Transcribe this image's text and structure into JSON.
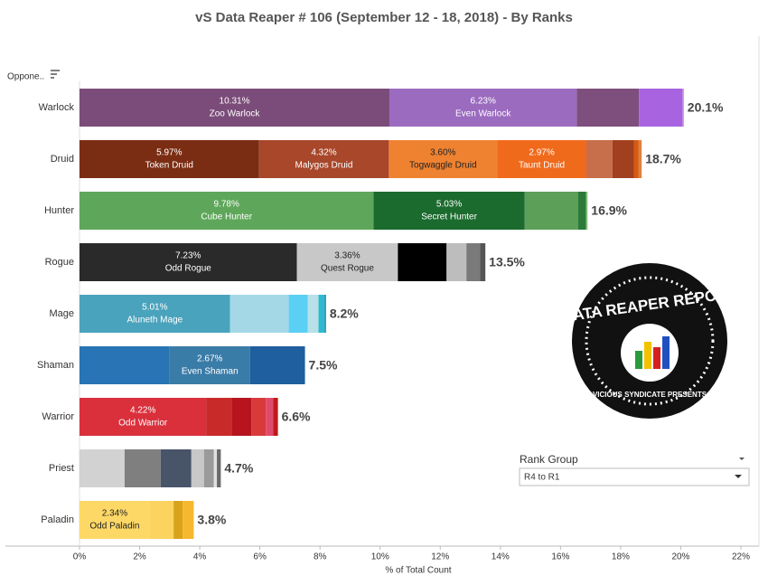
{
  "chart_data": {
    "type": "stacked-hbar",
    "title": "vS Data Reaper #  106 (September 12 - 18, 2018) - By Ranks",
    "row_header": "Oppone..",
    "x_label": "% of Total Count",
    "xlim": [
      0,
      22
    ],
    "xticks": [
      {
        "value": 0,
        "label": "0%"
      },
      {
        "value": 2,
        "label": "2%"
      },
      {
        "value": 4,
        "label": "4%"
      },
      {
        "value": 6,
        "label": "6%"
      },
      {
        "value": 8,
        "label": "8%"
      },
      {
        "value": 10,
        "label": "10%"
      },
      {
        "value": 12,
        "label": "12%"
      },
      {
        "value": 14,
        "label": "14%"
      },
      {
        "value": 16,
        "label": "16%"
      },
      {
        "value": 18,
        "label": "18%"
      },
      {
        "value": 20,
        "label": "20%"
      },
      {
        "value": 22,
        "label": "22%"
      }
    ],
    "bars": [
      {
        "category": "Warlock",
        "total": 20.1,
        "total_label": "20.1%",
        "segments": [
          {
            "name": "Zoo Warlock",
            "value": 10.31,
            "value_label": "10.31%",
            "color": "#7b4c7a"
          },
          {
            "name": "Even Warlock",
            "value": 6.23,
            "value_label": "6.23%",
            "color": "#9b6bc0"
          },
          {
            "value": 2.07,
            "color": "#7e4e7d"
          },
          {
            "value": 1.44,
            "color": "#a863e0"
          },
          {
            "value": 0.05,
            "color": "#c080e0"
          }
        ]
      },
      {
        "category": "Druid",
        "total": 18.7,
        "total_label": "18.7%",
        "segments": [
          {
            "name": "Token Druid",
            "value": 5.97,
            "value_label": "5.97%",
            "color": "#7b2d14"
          },
          {
            "name": "Malygos Druid",
            "value": 4.32,
            "value_label": "4.32%",
            "color": "#a8472a"
          },
          {
            "name": "Togwaggle Druid",
            "value": 3.6,
            "value_label": "3.60%",
            "color": "#ef8230"
          },
          {
            "name": "Taunt Druid",
            "value": 2.97,
            "value_label": "2.97%",
            "color": "#f06a1c"
          },
          {
            "value": 0.87,
            "color": "#c76e4a"
          },
          {
            "value": 0.72,
            "color": "#a0401f"
          },
          {
            "value": 0.15,
            "color": "#d85a10"
          },
          {
            "value": 0.1,
            "color": "#e08040"
          }
        ]
      },
      {
        "category": "Hunter",
        "total": 16.9,
        "total_label": "16.9%",
        "segments": [
          {
            "name": "Cube Hunter",
            "value": 9.78,
            "value_label": "9.78%",
            "color": "#5ea75a"
          },
          {
            "name": "Secret Hunter",
            "value": 5.03,
            "value_label": "5.03%",
            "color": "#1c6b2e"
          },
          {
            "value": 1.77,
            "color": "#5c9f58"
          },
          {
            "value": 0.27,
            "color": "#2b7a3a"
          },
          {
            "value": 0.05,
            "color": "#8bc080"
          }
        ]
      },
      {
        "category": "Rogue",
        "total": 13.5,
        "total_label": "13.5%",
        "segments": [
          {
            "name": "Odd Rogue",
            "value": 7.23,
            "value_label": "7.23%",
            "color": "#2a2a2a"
          },
          {
            "name": "Quest Rogue",
            "value": 3.36,
            "value_label": "3.36%",
            "color": "#c8c8c8"
          },
          {
            "value": 1.62,
            "color": "#000000"
          },
          {
            "value": 0.66,
            "color": "#bdbdbd"
          },
          {
            "value": 0.45,
            "color": "#7a7a7a"
          },
          {
            "value": 0.18,
            "color": "#555555"
          }
        ]
      },
      {
        "category": "Mage",
        "total": 8.2,
        "total_label": "8.2%",
        "segments": [
          {
            "name": "Aluneth Mage",
            "value": 5.01,
            "value_label": "5.01%",
            "color": "#4aa3bd"
          },
          {
            "value": 1.95,
            "color": "#a5d8e6"
          },
          {
            "value": 0.63,
            "color": "#5ad0f5"
          },
          {
            "value": 0.36,
            "color": "#b8e0e8"
          },
          {
            "value": 0.2,
            "color": "#30b8d0"
          },
          {
            "value": 0.05,
            "color": "#1a90b0"
          }
        ]
      },
      {
        "category": "Shaman",
        "total": 7.5,
        "total_label": "7.5%",
        "segments": [
          {
            "value": 3.0,
            "color": "#2874b4"
          },
          {
            "name": "Even Shaman",
            "value": 2.67,
            "value_label": "2.67%",
            "color": "#3a7ca8"
          },
          {
            "value": 1.83,
            "color": "#1f5f9f"
          }
        ]
      },
      {
        "category": "Warrior",
        "total": 6.6,
        "total_label": "6.6%",
        "segments": [
          {
            "name": "Odd Warrior",
            "value": 4.22,
            "value_label": "4.22%",
            "color": "#d9303c"
          },
          {
            "value": 0.84,
            "color": "#c82a2a"
          },
          {
            "value": 0.66,
            "color": "#b8141e"
          },
          {
            "value": 0.48,
            "color": "#d83a3a"
          },
          {
            "value": 0.24,
            "color": "#e04a6a"
          },
          {
            "value": 0.16,
            "color": "#c01818"
          }
        ]
      },
      {
        "category": "Priest",
        "total": 4.7,
        "total_label": "4.7%",
        "segments": [
          {
            "value": 1.5,
            "color": "#d2d2d2"
          },
          {
            "value": 1.2,
            "color": "#7f7f7f"
          },
          {
            "value": 1.02,
            "color": "#485468"
          },
          {
            "value": 0.42,
            "color": "#c8c8c8"
          },
          {
            "value": 0.33,
            "color": "#9a9a9a"
          },
          {
            "value": 0.1,
            "color": "#e0e0e0"
          },
          {
            "value": 0.13,
            "color": "#6a6a6a"
          }
        ]
      },
      {
        "category": "Paladin",
        "total": 3.8,
        "total_label": "3.8%",
        "segments": [
          {
            "name": "Odd Paladin",
            "value": 2.34,
            "value_label": "2.34%",
            "color": "#fdd866"
          },
          {
            "value": 0.79,
            "color": "#fcd35e"
          },
          {
            "value": 0.3,
            "color": "#d9a21b"
          },
          {
            "value": 0.37,
            "color": "#f5b82e"
          }
        ]
      }
    ],
    "filter": {
      "label": "Rank Group",
      "selected": "R4 to R1"
    },
    "logo": {
      "title": "DATA REAPER REPORT",
      "subtitle": "VICIOUS SYNDICATE PRESENTS"
    }
  }
}
